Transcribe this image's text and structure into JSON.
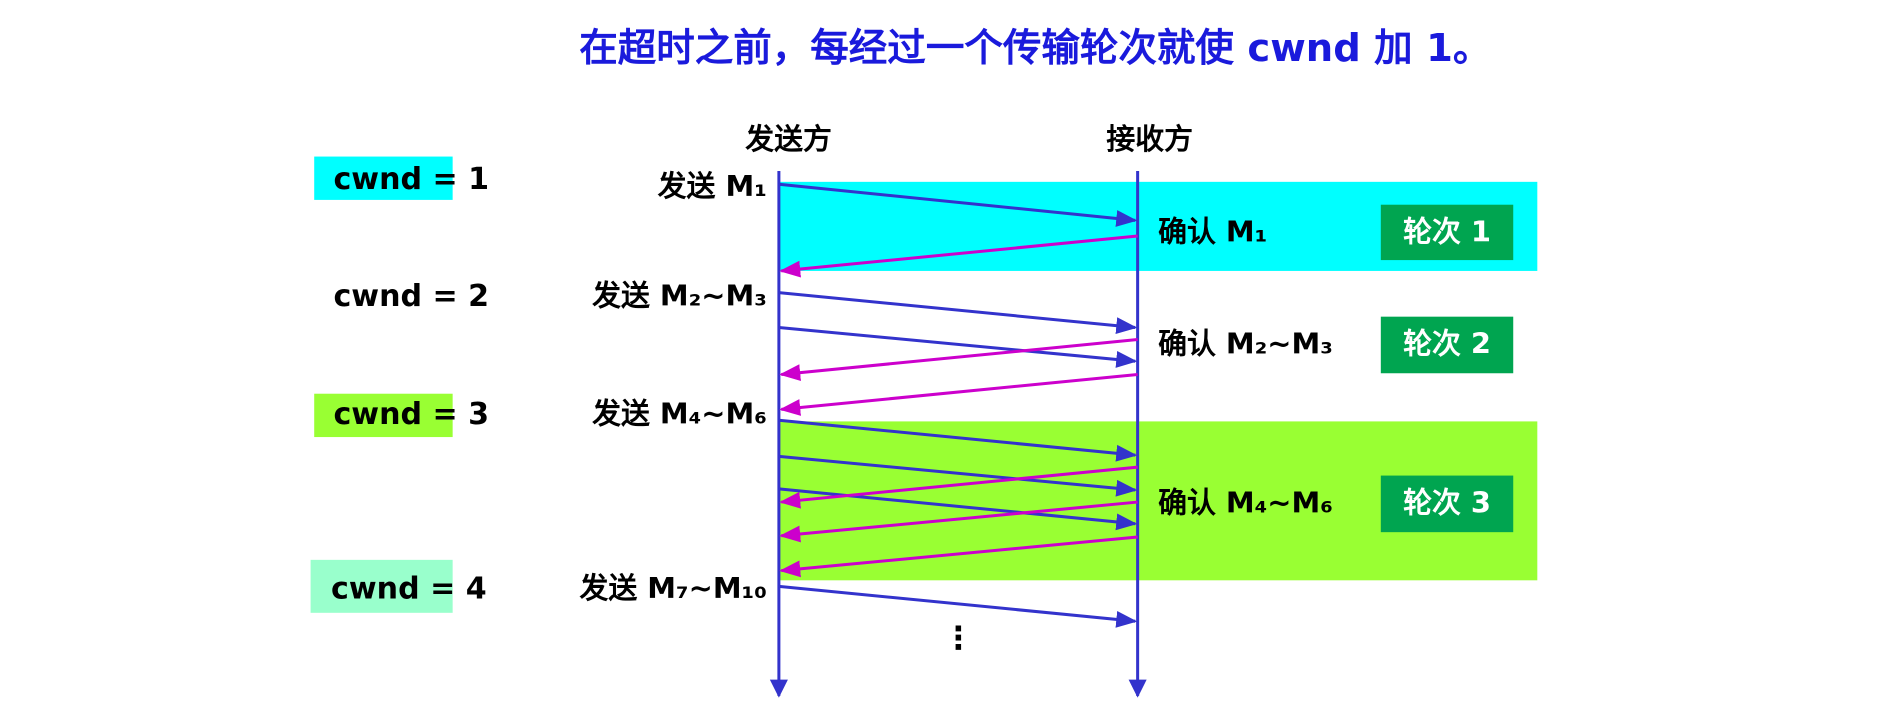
{
  "title": "在超时之前，每经过一个传输轮次就使 cwnd 加 1。",
  "sender": "发送方",
  "receiver": "接收方",
  "cwnd_labels": [
    "cwnd = 1",
    "cwnd = 2",
    "cwnd = 3",
    "cwnd = 4"
  ],
  "send_labels": [
    "发送 M₁",
    "发送 M₂~M₃",
    "发送 M₄~M₆",
    "发送 M₇~M₁₀"
  ],
  "ack_labels": [
    "确认 M₁",
    "确认 M₂~M₃",
    "确认 M₄~M₆"
  ],
  "rounds": [
    "轮次 1",
    "轮次 2",
    "轮次 3"
  ],
  "continuation": "⋮"
}
